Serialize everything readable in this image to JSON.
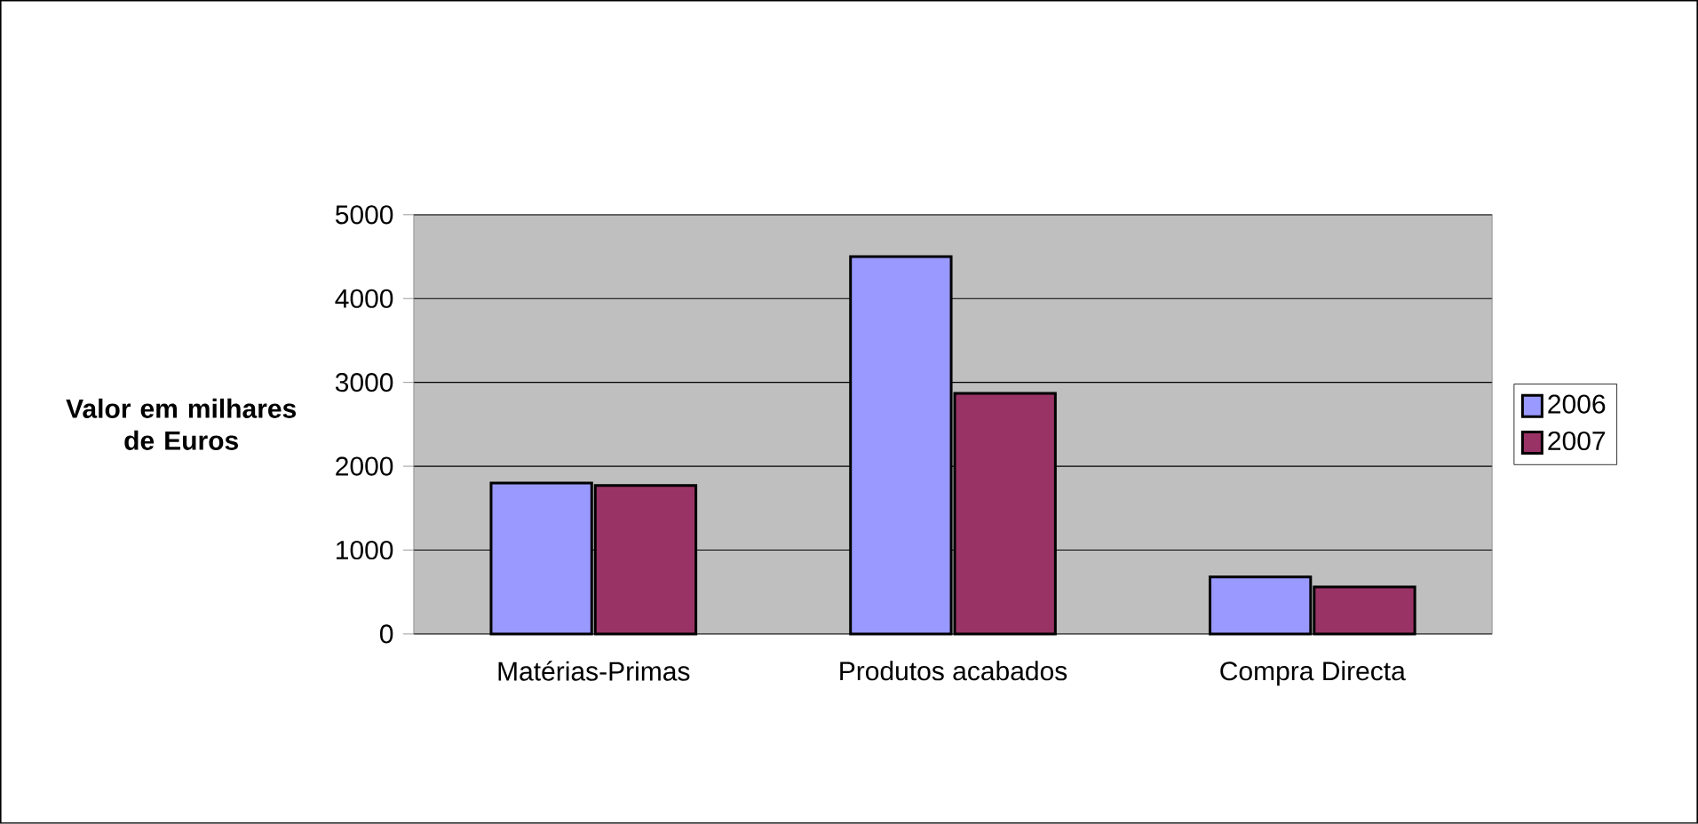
{
  "chart_data": {
    "type": "bar",
    "ylabel": "Valor em milhares de Euros",
    "categories": [
      "Matérias-Primas",
      "Produtos acabados",
      "Compra Directa"
    ],
    "series": [
      {
        "name": "2006",
        "color": "#9999ff",
        "values": [
          1800,
          4500,
          680
        ]
      },
      {
        "name": "2007",
        "color": "#993366",
        "values": [
          1770,
          2870,
          560
        ]
      }
    ],
    "ylim": [
      0,
      5000
    ],
    "yticks": [
      0,
      1000,
      2000,
      3000,
      4000,
      5000
    ],
    "grid": "y",
    "legend": "right"
  }
}
